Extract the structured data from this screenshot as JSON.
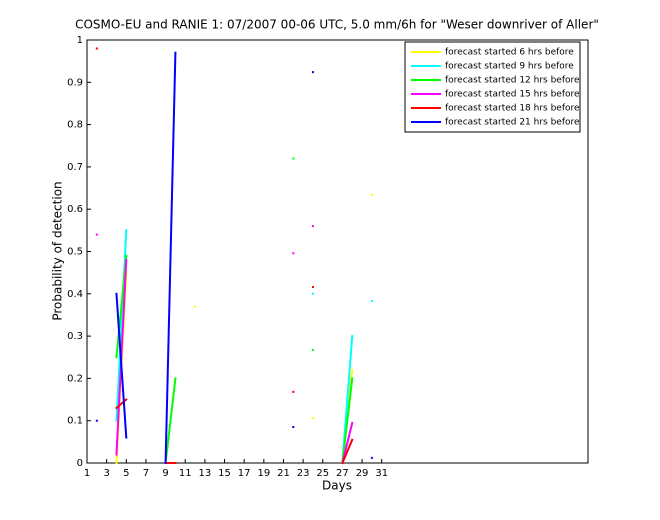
{
  "chart_data": {
    "type": "line",
    "title": "COSMO-EU and RANIE 1: 07/2007 00-06 UTC, 5.0 mm/6h for \"Weser downriver of Aller\"",
    "xlabel": "Days",
    "ylabel": "Probability of detection",
    "x": [
      1,
      2,
      3,
      4,
      5,
      6,
      7,
      8,
      9,
      10,
      11,
      12,
      13,
      14,
      15,
      16,
      17,
      18,
      19,
      20,
      21,
      22,
      23,
      24,
      25,
      26,
      27,
      28,
      29,
      30,
      31
    ],
    "series": [
      {
        "name": "forecast started 6 hrs before",
        "color": "#ffff00",
        "values": [
          null,
          null,
          null,
          0.0,
          0.45,
          null,
          null,
          null,
          null,
          null,
          null,
          0.37,
          null,
          null,
          null,
          null,
          null,
          null,
          null,
          null,
          null,
          null,
          null,
          0.106,
          null,
          null,
          0.0,
          0.22,
          null,
          0.634,
          null
        ]
      },
      {
        "name": "forecast started 9 hrs before",
        "color": "#00ffff",
        "values": [
          null,
          null,
          null,
          0.1,
          0.55,
          null,
          null,
          null,
          null,
          null,
          null,
          null,
          null,
          null,
          null,
          null,
          null,
          null,
          null,
          null,
          null,
          null,
          null,
          0.4,
          null,
          null,
          0.0,
          0.3,
          null,
          0.383,
          null
        ]
      },
      {
        "name": "forecast started 12 hrs before",
        "color": "#00ff00",
        "values": [
          null,
          null,
          null,
          0.25,
          0.49,
          null,
          null,
          null,
          0.0,
          0.2,
          null,
          null,
          null,
          null,
          null,
          null,
          null,
          null,
          null,
          null,
          null,
          0.72,
          null,
          0.267,
          null,
          null,
          0.0,
          0.2,
          null,
          null,
          null
        ]
      },
      {
        "name": "forecast started 15 hrs before",
        "color": "#ff00ff",
        "values": [
          null,
          0.54,
          null,
          0.02,
          0.48,
          null,
          null,
          null,
          null,
          null,
          null,
          null,
          null,
          null,
          null,
          null,
          null,
          null,
          null,
          null,
          null,
          0.496,
          null,
          0.56,
          null,
          null,
          0.0,
          0.095,
          null,
          null,
          null
        ]
      },
      {
        "name": "forecast started 18 hrs before",
        "color": "#ff0000",
        "values": [
          null,
          0.98,
          null,
          0.13,
          0.15,
          null,
          null,
          null,
          0.0,
          0.0,
          null,
          null,
          null,
          null,
          null,
          null,
          null,
          null,
          null,
          null,
          null,
          0.168,
          null,
          0.416,
          null,
          null,
          0.0,
          0.055,
          null,
          null,
          null
        ]
      },
      {
        "name": "forecast started 21 hrs before",
        "color": "#0000ff",
        "values": [
          null,
          0.1,
          null,
          0.4,
          0.06,
          null,
          null,
          null,
          0.0,
          0.97,
          null,
          null,
          null,
          null,
          null,
          null,
          null,
          null,
          null,
          null,
          null,
          0.085,
          null,
          0.924,
          null,
          null,
          null,
          null,
          null,
          0.012,
          null
        ]
      }
    ],
    "xlim": [
      1,
      52
    ],
    "ylim": [
      0,
      1
    ],
    "xticks": [
      1,
      3,
      5,
      7,
      9,
      11,
      13,
      15,
      17,
      19,
      21,
      23,
      25,
      27,
      29,
      31
    ],
    "yticks": [
      0,
      0.1,
      0.2,
      0.3,
      0.4,
      0.5,
      0.6,
      0.7,
      0.8,
      0.9,
      1
    ],
    "grid": false,
    "legend": "northeast"
  }
}
